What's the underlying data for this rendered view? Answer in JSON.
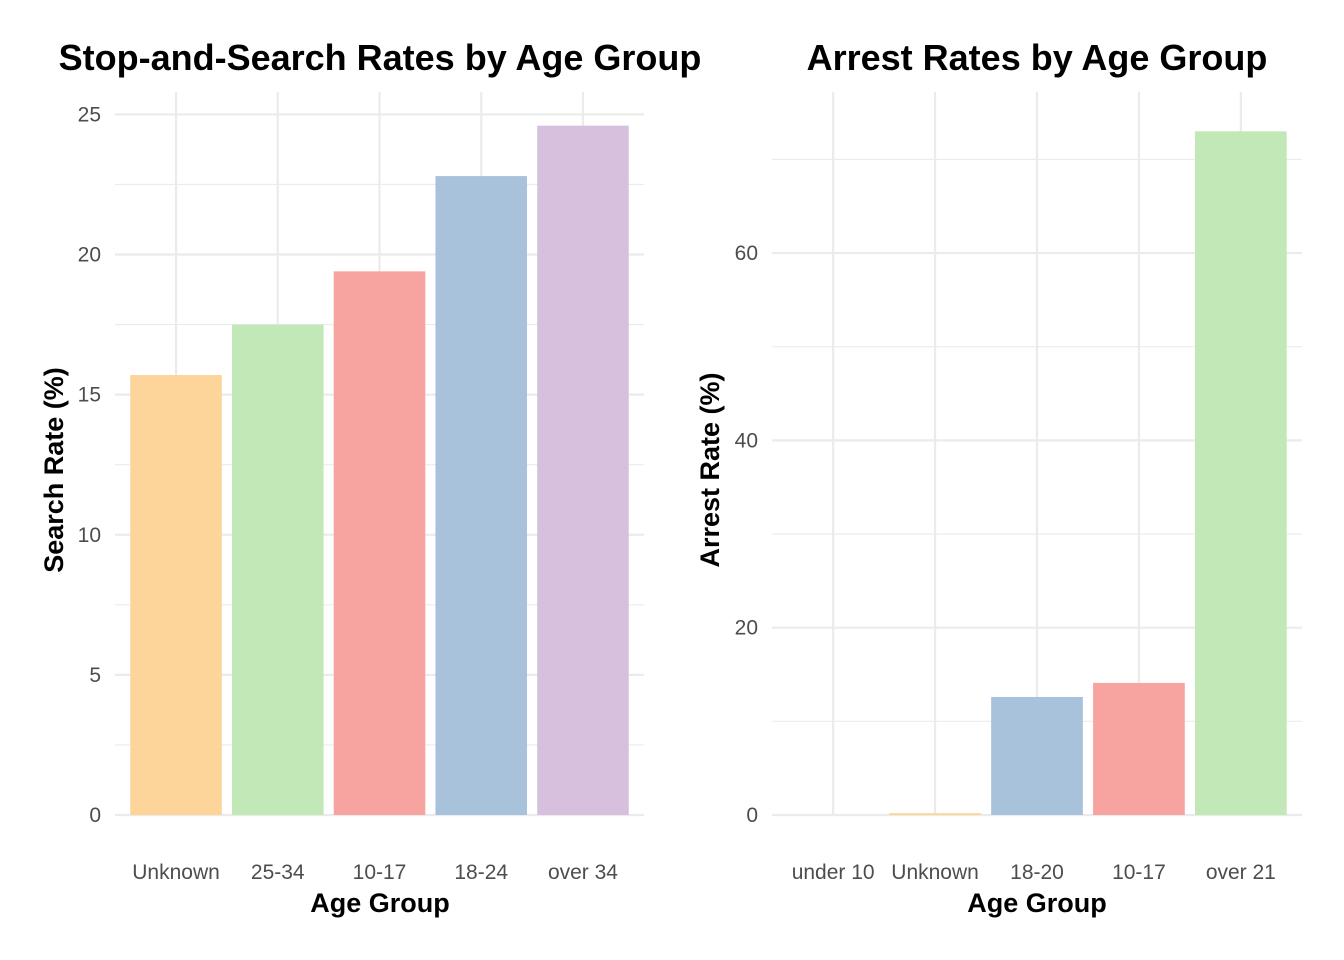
{
  "chart_data": [
    {
      "type": "bar",
      "title": "Stop-and-Search Rates by Age Group",
      "xlabel": "Age Group",
      "ylabel": "Search Rate (%)",
      "categories": [
        "Unknown",
        "25-34",
        "10-17",
        "18-24",
        "over 34"
      ],
      "values": [
        15.7,
        17.5,
        19.4,
        22.8,
        24.6
      ],
      "colors": [
        "#fdd49a",
        "#c3e8b7",
        "#f7a4a0",
        "#a8c2dc",
        "#d6c0dd"
      ],
      "ylim": [
        0,
        25.8
      ],
      "yticks": [
        0,
        5,
        10,
        15,
        20,
        25
      ],
      "grid": true,
      "legend": "none"
    },
    {
      "type": "bar",
      "title": "Arrest Rates by Age Group",
      "xlabel": "Age Group",
      "ylabel": "Arrest Rate (%)",
      "categories": [
        "under 10",
        "Unknown",
        "18-20",
        "10-17",
        "over 21"
      ],
      "values": [
        0,
        0.2,
        12.6,
        14.1,
        73.0
      ],
      "colors": [
        "#fdd49a",
        "#fdd49a",
        "#a8c2dc",
        "#f7a4a0",
        "#c3e8b7"
      ],
      "ylim": [
        0,
        77.2
      ],
      "yticks": [
        0,
        20,
        40,
        60
      ],
      "grid": true,
      "legend": "none"
    }
  ]
}
